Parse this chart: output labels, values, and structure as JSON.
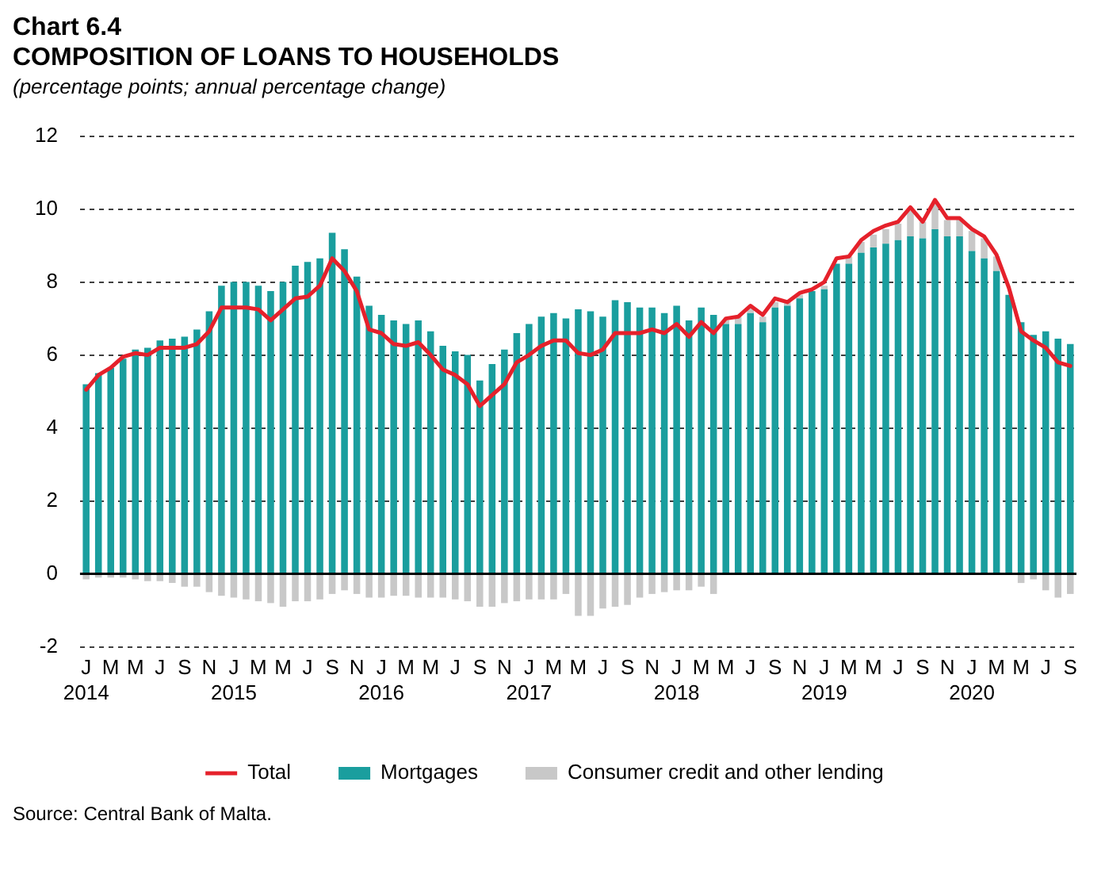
{
  "chart_data": {
    "type": "bar",
    "title": "Chart 6.4\nCOMPOSITION OF LOANS TO HOUSEHOLDS",
    "subtitle": "(percentage points; annual percentage change)",
    "categories": [
      "J\n2014",
      null,
      "M",
      null,
      "M",
      null,
      "J",
      null,
      "S",
      null,
      "N",
      null,
      "J\n2015",
      null,
      "M",
      null,
      "M",
      null,
      "J",
      null,
      "S",
      null,
      "N",
      null,
      "J\n2016",
      null,
      "M",
      null,
      "M",
      null,
      "J",
      null,
      "S",
      null,
      "N",
      null,
      "J\n2017",
      null,
      "M",
      null,
      "M",
      null,
      "J",
      null,
      "S",
      null,
      "N",
      null,
      "J\n2018",
      null,
      "M",
      null,
      "M",
      null,
      "J",
      null,
      "S",
      null,
      "N",
      null,
      "J\n2019",
      null,
      "M",
      null,
      "M",
      null,
      "J",
      null,
      "S",
      null,
      "N",
      null,
      "J\n2020",
      null,
      "M",
      null,
      "M",
      null,
      "J",
      null,
      "S"
    ],
    "stacked": true,
    "series": [
      {
        "name": "Mortgages",
        "color": "#1a9e9e",
        "values": [
          5.2,
          5.5,
          5.65,
          5.9,
          6.15,
          6.2,
          6.4,
          6.45,
          6.5,
          6.7,
          7.2,
          7.9,
          8.0,
          8.0,
          7.9,
          7.75,
          8.0,
          8.45,
          8.55,
          8.65,
          9.35,
          8.9,
          8.15,
          7.35,
          7.1,
          6.95,
          6.85,
          6.95,
          6.65,
          6.25,
          6.1,
          6.0,
          5.3,
          5.75,
          6.15,
          6.6,
          6.85,
          7.05,
          7.15,
          7.0,
          7.25,
          7.2,
          7.05,
          7.5,
          7.45,
          7.3,
          7.3,
          7.15,
          7.35,
          6.95,
          7.3,
          7.1,
          6.85,
          6.85,
          7.15,
          6.9,
          7.3,
          7.35,
          7.55,
          7.75,
          7.8,
          8.5,
          8.5,
          8.8,
          8.95,
          9.05,
          9.15,
          9.25,
          9.2,
          9.45,
          9.25,
          9.25,
          8.85,
          8.65,
          8.3,
          7.65,
          6.9,
          6.55,
          6.65,
          6.45,
          6.3
        ]
      },
      {
        "name": "Consumer credit and other lending",
        "color": "#c8c8c8",
        "values": [
          -0.15,
          -0.1,
          -0.1,
          -0.1,
          -0.15,
          -0.2,
          -0.2,
          -0.25,
          -0.35,
          -0.35,
          -0.5,
          -0.6,
          -0.65,
          -0.7,
          -0.75,
          -0.8,
          -0.9,
          -0.75,
          -0.75,
          -0.7,
          -0.55,
          -0.45,
          -0.55,
          -0.65,
          -0.65,
          -0.6,
          -0.6,
          -0.65,
          -0.65,
          -0.65,
          -0.7,
          -0.75,
          -0.9,
          -0.9,
          -0.8,
          -0.75,
          -0.7,
          -0.7,
          -0.7,
          -0.55,
          -1.15,
          -1.15,
          -0.95,
          -0.9,
          -0.85,
          -0.65,
          -0.55,
          -0.5,
          -0.45,
          -0.45,
          -0.35,
          -0.55,
          0.1,
          0.2,
          0.15,
          0.15,
          0.15,
          0.15,
          0.1,
          null,
          0.1,
          null,
          0.2,
          0.3,
          0.35,
          0.4,
          0.45,
          0.7,
          0.45,
          0.7,
          0.45,
          0.5,
          0.55,
          0.55,
          0.4,
          null,
          -0.25,
          -0.15,
          -0.45,
          -0.65,
          -0.55
        ]
      },
      {
        "name": "Total",
        "type": "line",
        "color": "#e5212b",
        "values": [
          5.05,
          5.45,
          5.65,
          5.95,
          6.05,
          6.0,
          6.2,
          6.2,
          6.2,
          6.3,
          6.65,
          7.3,
          7.3,
          7.3,
          7.25,
          6.95,
          7.25,
          7.55,
          7.6,
          7.9,
          8.65,
          8.3,
          7.75,
          6.7,
          6.6,
          6.3,
          6.25,
          6.35,
          6.0,
          5.6,
          5.45,
          5.2,
          4.6,
          4.9,
          5.2,
          5.8,
          6.0,
          6.25,
          6.4,
          6.4,
          6.05,
          6.0,
          6.15,
          6.6,
          6.6,
          6.6,
          6.7,
          6.6,
          6.85,
          6.5,
          6.9,
          6.6,
          7.0,
          7.05,
          7.35,
          7.1,
          7.55,
          7.45,
          7.7,
          7.8,
          8.0,
          8.65,
          8.7,
          9.15,
          9.4,
          9.55,
          9.65,
          10.05,
          9.65,
          10.25,
          9.75,
          9.75,
          9.45,
          9.25,
          8.75,
          7.85,
          6.65,
          6.4,
          6.2,
          5.8,
          5.7
        ]
      }
    ],
    "ylim": [
      -2,
      12
    ],
    "yticks": [
      -2,
      0,
      2,
      4,
      6,
      8,
      10,
      12
    ],
    "grid": "y",
    "line_style": "solid",
    "marker": "none",
    "legend": "bottom",
    "annotations": [
      "Source: Central Bank of Malta."
    ]
  }
}
